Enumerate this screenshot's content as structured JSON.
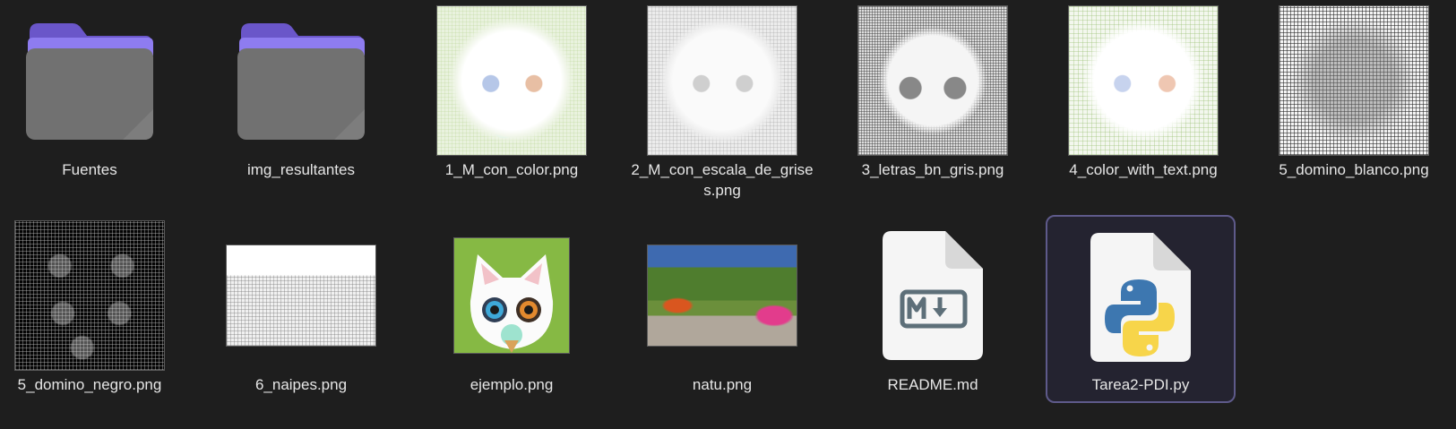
{
  "files": [
    {
      "name": "Fuentes",
      "type": "folder"
    },
    {
      "name": "img_resultantes",
      "type": "folder"
    },
    {
      "name": "1_M_con_color.png",
      "type": "image"
    },
    {
      "name": "2_M_con_escala_de_grises.png",
      "type": "image"
    },
    {
      "name": "3_letras_bn_gris.png",
      "type": "image"
    },
    {
      "name": "4_color_with_text.png",
      "type": "image"
    },
    {
      "name": "5_domino_blanco.png",
      "type": "image"
    },
    {
      "name": "5_domino_negro.png",
      "type": "image"
    },
    {
      "name": "6_naipes.png",
      "type": "image"
    },
    {
      "name": "ejemplo.png",
      "type": "image"
    },
    {
      "name": "natu.png",
      "type": "image"
    },
    {
      "name": "README.md",
      "type": "markdown"
    },
    {
      "name": "Tarea2-PDI.py",
      "type": "python",
      "selected": true
    }
  ],
  "colors": {
    "background": "#1e1e1e",
    "folder_tab": "#7b68d6",
    "folder_body": "#6f6f6f",
    "selection_border": "#5e5a8a",
    "text": "#e6e6e6"
  }
}
